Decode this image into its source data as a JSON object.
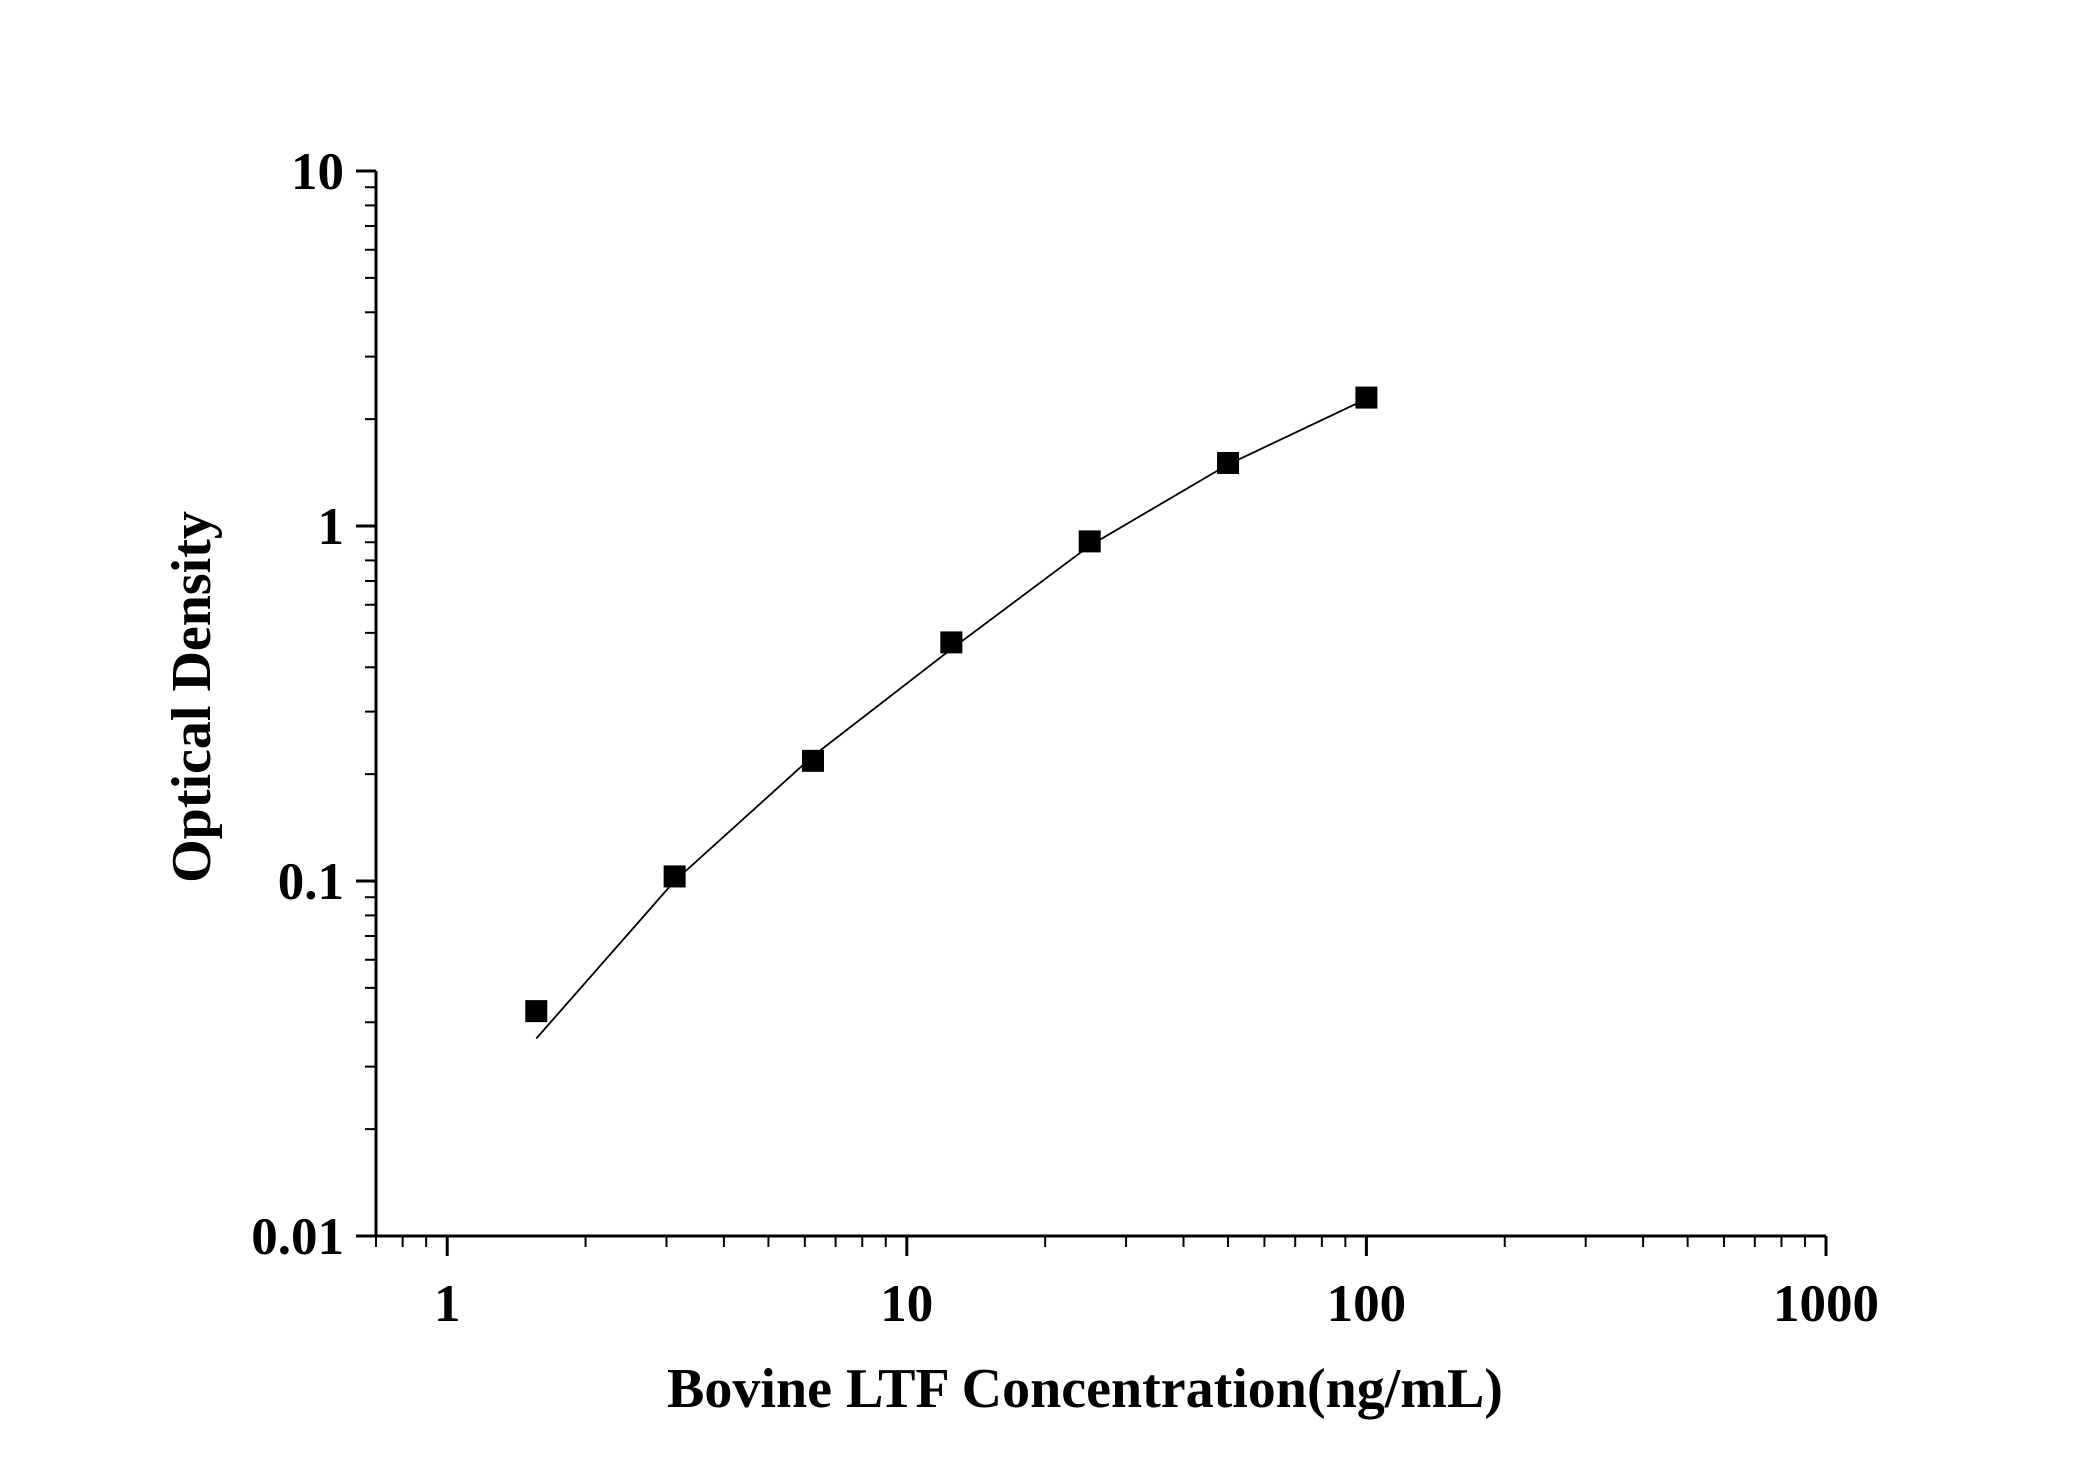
{
  "chart_data": {
    "type": "scatter",
    "title": "",
    "xlabel": "Bovine LTF Concentration(ng/mL)",
    "ylabel": "Optical Density",
    "xscale": "log",
    "yscale": "log",
    "xlim": [
      0.7,
      1000
    ],
    "ylim": [
      0.01,
      10
    ],
    "x_ticks": [
      1,
      10,
      100,
      1000
    ],
    "x_tick_labels": [
      "1",
      "10",
      "100",
      "1000"
    ],
    "y_ticks": [
      0.01,
      0.1,
      1,
      10
    ],
    "y_tick_labels": [
      "0.01",
      "0.1",
      "1",
      "10"
    ],
    "grid": false,
    "legend": "none",
    "series": [
      {
        "marker": "square",
        "color": "#000000",
        "x": [
          1.5625,
          3.125,
          6.25,
          12.5,
          25,
          50,
          100
        ],
        "y": [
          0.043,
          0.103,
          0.218,
          0.47,
          0.905,
          1.505,
          2.3
        ]
      },
      {
        "style": "fit-line",
        "color": "#000000",
        "x": [
          1.5625,
          3.125,
          6.25,
          12.5,
          25,
          50,
          100
        ],
        "y": [
          0.036,
          0.1,
          0.225,
          0.45,
          0.88,
          1.49,
          2.28
        ]
      }
    ]
  }
}
